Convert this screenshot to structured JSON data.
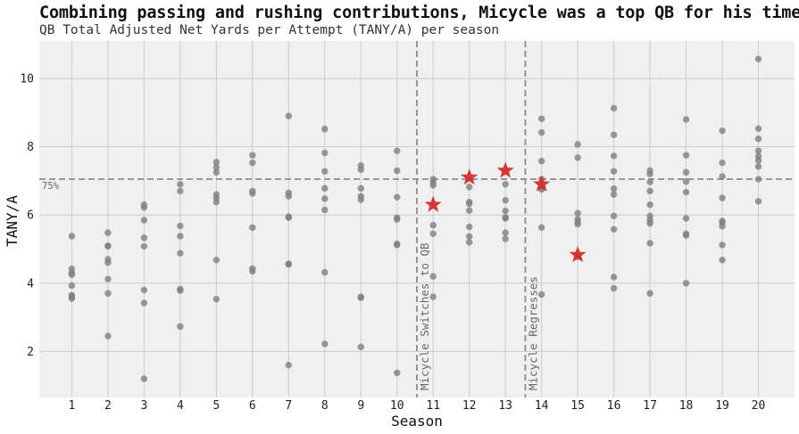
{
  "chart_data": {
    "type": "scatter",
    "title": "Combining passing and rushing contributions, Micycle was a top QB for his time",
    "subtitle": "QB Total Adjusted Net Yards per Attempt (TANY/A) per season",
    "xlabel": "Season",
    "ylabel": "TANY/A",
    "xlim": [
      0.1,
      21.0
    ],
    "ylim": [
      0.65,
      11.1
    ],
    "x_ticks": [
      1,
      2,
      3,
      4,
      5,
      6,
      7,
      8,
      9,
      10,
      11,
      12,
      13,
      14,
      15,
      16,
      17,
      18,
      19,
      20
    ],
    "y_ticks": [
      2,
      4,
      6,
      8,
      10
    ],
    "grid": true,
    "reference_line": {
      "y": 7.05,
      "label": "75%"
    },
    "vertical_lines": [
      {
        "x": 10.55,
        "label": "Micycle Switches to QB"
      },
      {
        "x": 13.55,
        "label": "Micycle Regresses"
      }
    ],
    "series": [
      {
        "marker": "circle",
        "color": "#7f7f7f",
        "points": [
          [
            1,
            5.38
          ],
          [
            1,
            4.42
          ],
          [
            1,
            4.3
          ],
          [
            1,
            4.25
          ],
          [
            1,
            3.93
          ],
          [
            1,
            3.65
          ],
          [
            1,
            3.6
          ],
          [
            1,
            3.55
          ],
          [
            2,
            5.48
          ],
          [
            2,
            5.1
          ],
          [
            2,
            5.08
          ],
          [
            2,
            4.7
          ],
          [
            2,
            4.6
          ],
          [
            2,
            4.12
          ],
          [
            2,
            3.7
          ],
          [
            2,
            2.45
          ],
          [
            3,
            6.3
          ],
          [
            3,
            6.22
          ],
          [
            3,
            5.85
          ],
          [
            3,
            5.33
          ],
          [
            3,
            5.08
          ],
          [
            3,
            3.8
          ],
          [
            3,
            3.42
          ],
          [
            3,
            1.2
          ],
          [
            4,
            6.9
          ],
          [
            4,
            6.7
          ],
          [
            4,
            5.68
          ],
          [
            4,
            5.38
          ],
          [
            4,
            4.88
          ],
          [
            4,
            3.83
          ],
          [
            4,
            3.78
          ],
          [
            4,
            2.73
          ],
          [
            5,
            7.55
          ],
          [
            5,
            7.4
          ],
          [
            5,
            7.25
          ],
          [
            5,
            6.6
          ],
          [
            5,
            6.5
          ],
          [
            5,
            6.38
          ],
          [
            5,
            4.68
          ],
          [
            5,
            3.53
          ],
          [
            6,
            7.75
          ],
          [
            6,
            7.53
          ],
          [
            6,
            6.7
          ],
          [
            6,
            6.63
          ],
          [
            6,
            5.63
          ],
          [
            6,
            4.43
          ],
          [
            6,
            4.35
          ],
          [
            7,
            8.9
          ],
          [
            7,
            6.65
          ],
          [
            7,
            6.55
          ],
          [
            7,
            5.95
          ],
          [
            7,
            5.92
          ],
          [
            7,
            4.57
          ],
          [
            7,
            4.55
          ],
          [
            7,
            1.6
          ],
          [
            8,
            8.52
          ],
          [
            8,
            7.82
          ],
          [
            8,
            7.28
          ],
          [
            8,
            6.78
          ],
          [
            8,
            6.48
          ],
          [
            8,
            6.15
          ],
          [
            8,
            4.32
          ],
          [
            8,
            2.22
          ],
          [
            9,
            7.45
          ],
          [
            9,
            7.33
          ],
          [
            9,
            6.78
          ],
          [
            9,
            6.55
          ],
          [
            9,
            6.45
          ],
          [
            9,
            3.6
          ],
          [
            9,
            3.57
          ],
          [
            9,
            2.13
          ],
          [
            10,
            7.88
          ],
          [
            10,
            7.3
          ],
          [
            10,
            6.52
          ],
          [
            10,
            5.92
          ],
          [
            10,
            5.87
          ],
          [
            10,
            5.15
          ],
          [
            10,
            5.12
          ],
          [
            10,
            1.37
          ],
          [
            11,
            7.05
          ],
          [
            11,
            6.95
          ],
          [
            11,
            6.87
          ],
          [
            11,
            5.7
          ],
          [
            11,
            5.45
          ],
          [
            11,
            4.2
          ],
          [
            11,
            3.6
          ],
          [
            12,
            6.82
          ],
          [
            12,
            6.38
          ],
          [
            12,
            6.33
          ],
          [
            12,
            6.13
          ],
          [
            12,
            5.65
          ],
          [
            12,
            5.37
          ],
          [
            12,
            5.2
          ],
          [
            13,
            6.9
          ],
          [
            13,
            6.43
          ],
          [
            13,
            6.12
          ],
          [
            13,
            5.93
          ],
          [
            13,
            5.9
          ],
          [
            13,
            5.48
          ],
          [
            13,
            5.3
          ],
          [
            14,
            8.82
          ],
          [
            14,
            8.42
          ],
          [
            14,
            7.58
          ],
          [
            14,
            7.05
          ],
          [
            14,
            6.8
          ],
          [
            14,
            6.75
          ],
          [
            14,
            5.63
          ],
          [
            14,
            3.67
          ],
          [
            15,
            8.07
          ],
          [
            15,
            7.68
          ],
          [
            15,
            6.05
          ],
          [
            15,
            5.88
          ],
          [
            15,
            5.8
          ],
          [
            15,
            5.73
          ],
          [
            15,
            4.78
          ],
          [
            16,
            9.13
          ],
          [
            16,
            8.35
          ],
          [
            16,
            7.73
          ],
          [
            16,
            7.28
          ],
          [
            16,
            6.77
          ],
          [
            16,
            6.6
          ],
          [
            16,
            5.97
          ],
          [
            16,
            5.58
          ],
          [
            16,
            4.18
          ],
          [
            16,
            3.85
          ],
          [
            17,
            7.3
          ],
          [
            17,
            7.2
          ],
          [
            17,
            6.97
          ],
          [
            17,
            6.7
          ],
          [
            17,
            6.3
          ],
          [
            17,
            5.97
          ],
          [
            17,
            5.85
          ],
          [
            17,
            5.75
          ],
          [
            17,
            5.17
          ],
          [
            17,
            3.7
          ],
          [
            18,
            8.8
          ],
          [
            18,
            7.75
          ],
          [
            18,
            7.25
          ],
          [
            18,
            6.98
          ],
          [
            18,
            6.67
          ],
          [
            18,
            5.9
          ],
          [
            18,
            5.45
          ],
          [
            18,
            5.4
          ],
          [
            18,
            4.0
          ],
          [
            19,
            8.47
          ],
          [
            19,
            7.53
          ],
          [
            19,
            7.13
          ],
          [
            19,
            6.5
          ],
          [
            19,
            5.82
          ],
          [
            19,
            5.78
          ],
          [
            19,
            5.67
          ],
          [
            19,
            5.12
          ],
          [
            19,
            4.68
          ],
          [
            20,
            10.57
          ],
          [
            20,
            8.53
          ],
          [
            20,
            8.23
          ],
          [
            20,
            7.88
          ],
          [
            20,
            7.72
          ],
          [
            20,
            7.6
          ],
          [
            20,
            7.42
          ],
          [
            20,
            7.05
          ],
          [
            20,
            6.4
          ]
        ]
      },
      {
        "marker": "star",
        "color": "#d62728",
        "points": [
          [
            11,
            6.3
          ],
          [
            12,
            7.1
          ],
          [
            13,
            7.3
          ],
          [
            14,
            6.9
          ],
          [
            15,
            4.83
          ]
        ]
      }
    ]
  }
}
